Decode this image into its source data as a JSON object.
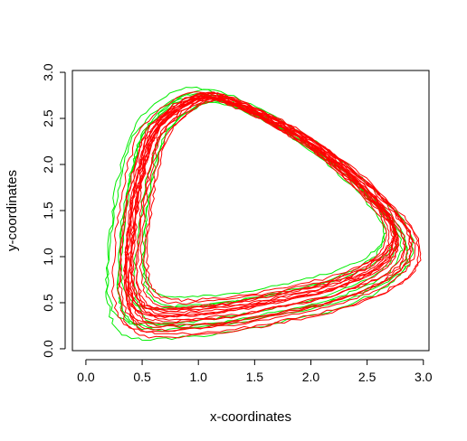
{
  "chart_data": {
    "type": "line",
    "title": "",
    "xlabel": "x-coordinates",
    "ylabel": "y-coordinates",
    "xlim": [
      -0.12,
      3.05
    ],
    "ylim": [
      -0.02,
      3.02
    ],
    "x_ticks": [
      0.0,
      0.5,
      1.0,
      1.5,
      2.0,
      2.5,
      3.0
    ],
    "x_tick_labels": [
      "0.0",
      "0.5",
      "1.0",
      "1.5",
      "2.0",
      "2.5",
      "3.0"
    ],
    "y_ticks": [
      0.0,
      0.5,
      1.0,
      1.5,
      2.0,
      2.5,
      3.0
    ],
    "y_tick_labels": [
      "0.0",
      "0.5",
      "1.0",
      "1.5",
      "2.0",
      "2.5",
      "3.0"
    ],
    "grid": false,
    "legend": "none",
    "description_of_series": "Multiple closed trajectories in the shape of a rounded triangle, drawn in red and green.",
    "base_loop": [
      [
        1.05,
        2.72
      ],
      [
        1.5,
        2.55
      ],
      [
        2.0,
        2.2
      ],
      [
        2.45,
        1.75
      ],
      [
        2.75,
        1.3
      ],
      [
        2.7,
        0.95
      ],
      [
        2.3,
        0.68
      ],
      [
        1.7,
        0.5
      ],
      [
        1.1,
        0.38
      ],
      [
        0.55,
        0.38
      ],
      [
        0.4,
        0.7
      ],
      [
        0.42,
        1.3
      ],
      [
        0.5,
        1.9
      ],
      [
        0.65,
        2.4
      ]
    ],
    "series": [
      {
        "color": "#00ee00",
        "scale": 1.06,
        "dx": -0.05,
        "dy": -0.05
      },
      {
        "color": "#00ee00",
        "scale": 1.12,
        "dx": -0.08,
        "dy": -0.12
      },
      {
        "color": "#00ee00",
        "scale": 0.94,
        "dx": 0.05,
        "dy": 0.05
      },
      {
        "color": "#00ee00",
        "scale": 1.08,
        "dx": -0.12,
        "dy": 0.0
      },
      {
        "color": "#00ee00",
        "scale": 1.02,
        "dx": 0.06,
        "dy": -0.08
      },
      {
        "color": "#00ee00",
        "scale": 0.98,
        "dx": -0.1,
        "dy": 0.06
      },
      {
        "color": "#00ee00",
        "scale": 1.1,
        "dx": 0.0,
        "dy": -0.04
      },
      {
        "color": "#00ee00",
        "scale": 0.9,
        "dx": 0.02,
        "dy": 0.1
      },
      {
        "color": "#ff0000",
        "scale": 1.0,
        "dx": 0.0,
        "dy": 0.0
      },
      {
        "color": "#ff0000",
        "scale": 1.03,
        "dx": 0.02,
        "dy": -0.02
      },
      {
        "color": "#ff0000",
        "scale": 0.97,
        "dx": 0.03,
        "dy": 0.03
      },
      {
        "color": "#ff0000",
        "scale": 1.05,
        "dx": 0.05,
        "dy": -0.05
      },
      {
        "color": "#ff0000",
        "scale": 0.96,
        "dx": -0.02,
        "dy": 0.04
      },
      {
        "color": "#ff0000",
        "scale": 1.08,
        "dx": 0.04,
        "dy": -0.07
      },
      {
        "color": "#ff0000",
        "scale": 0.93,
        "dx": 0.06,
        "dy": 0.07
      },
      {
        "color": "#ff0000",
        "scale": 1.01,
        "dx": -0.03,
        "dy": 0.01
      },
      {
        "color": "#ff0000",
        "scale": 1.1,
        "dx": 0.07,
        "dy": -0.09
      },
      {
        "color": "#ff0000",
        "scale": 0.99,
        "dx": 0.01,
        "dy": 0.02
      },
      {
        "color": "#ff0000",
        "scale": 1.04,
        "dx": -0.05,
        "dy": -0.03
      },
      {
        "color": "#ff0000",
        "scale": 0.95,
        "dx": 0.04,
        "dy": 0.05
      },
      {
        "color": "#ff0000",
        "scale": 1.07,
        "dx": 0.03,
        "dy": -0.04
      },
      {
        "color": "#ff0000",
        "scale": 0.98,
        "dx": -0.01,
        "dy": 0.03
      },
      {
        "color": "#ff0000",
        "scale": 1.02,
        "dx": 0.08,
        "dy": -0.01
      },
      {
        "color": "#ff0000",
        "scale": 1.09,
        "dx": -0.06,
        "dy": -0.06
      },
      {
        "color": "#ff0000",
        "scale": 0.92,
        "dx": 0.07,
        "dy": 0.09
      },
      {
        "color": "#ff0000",
        "scale": 1.0,
        "dx": -0.04,
        "dy": 0.0
      },
      {
        "color": "#ff0000",
        "scale": 1.12,
        "dx": 0.03,
        "dy": -0.1
      },
      {
        "color": "#ff0000",
        "scale": 0.97,
        "dx": -0.07,
        "dy": 0.05
      }
    ]
  }
}
